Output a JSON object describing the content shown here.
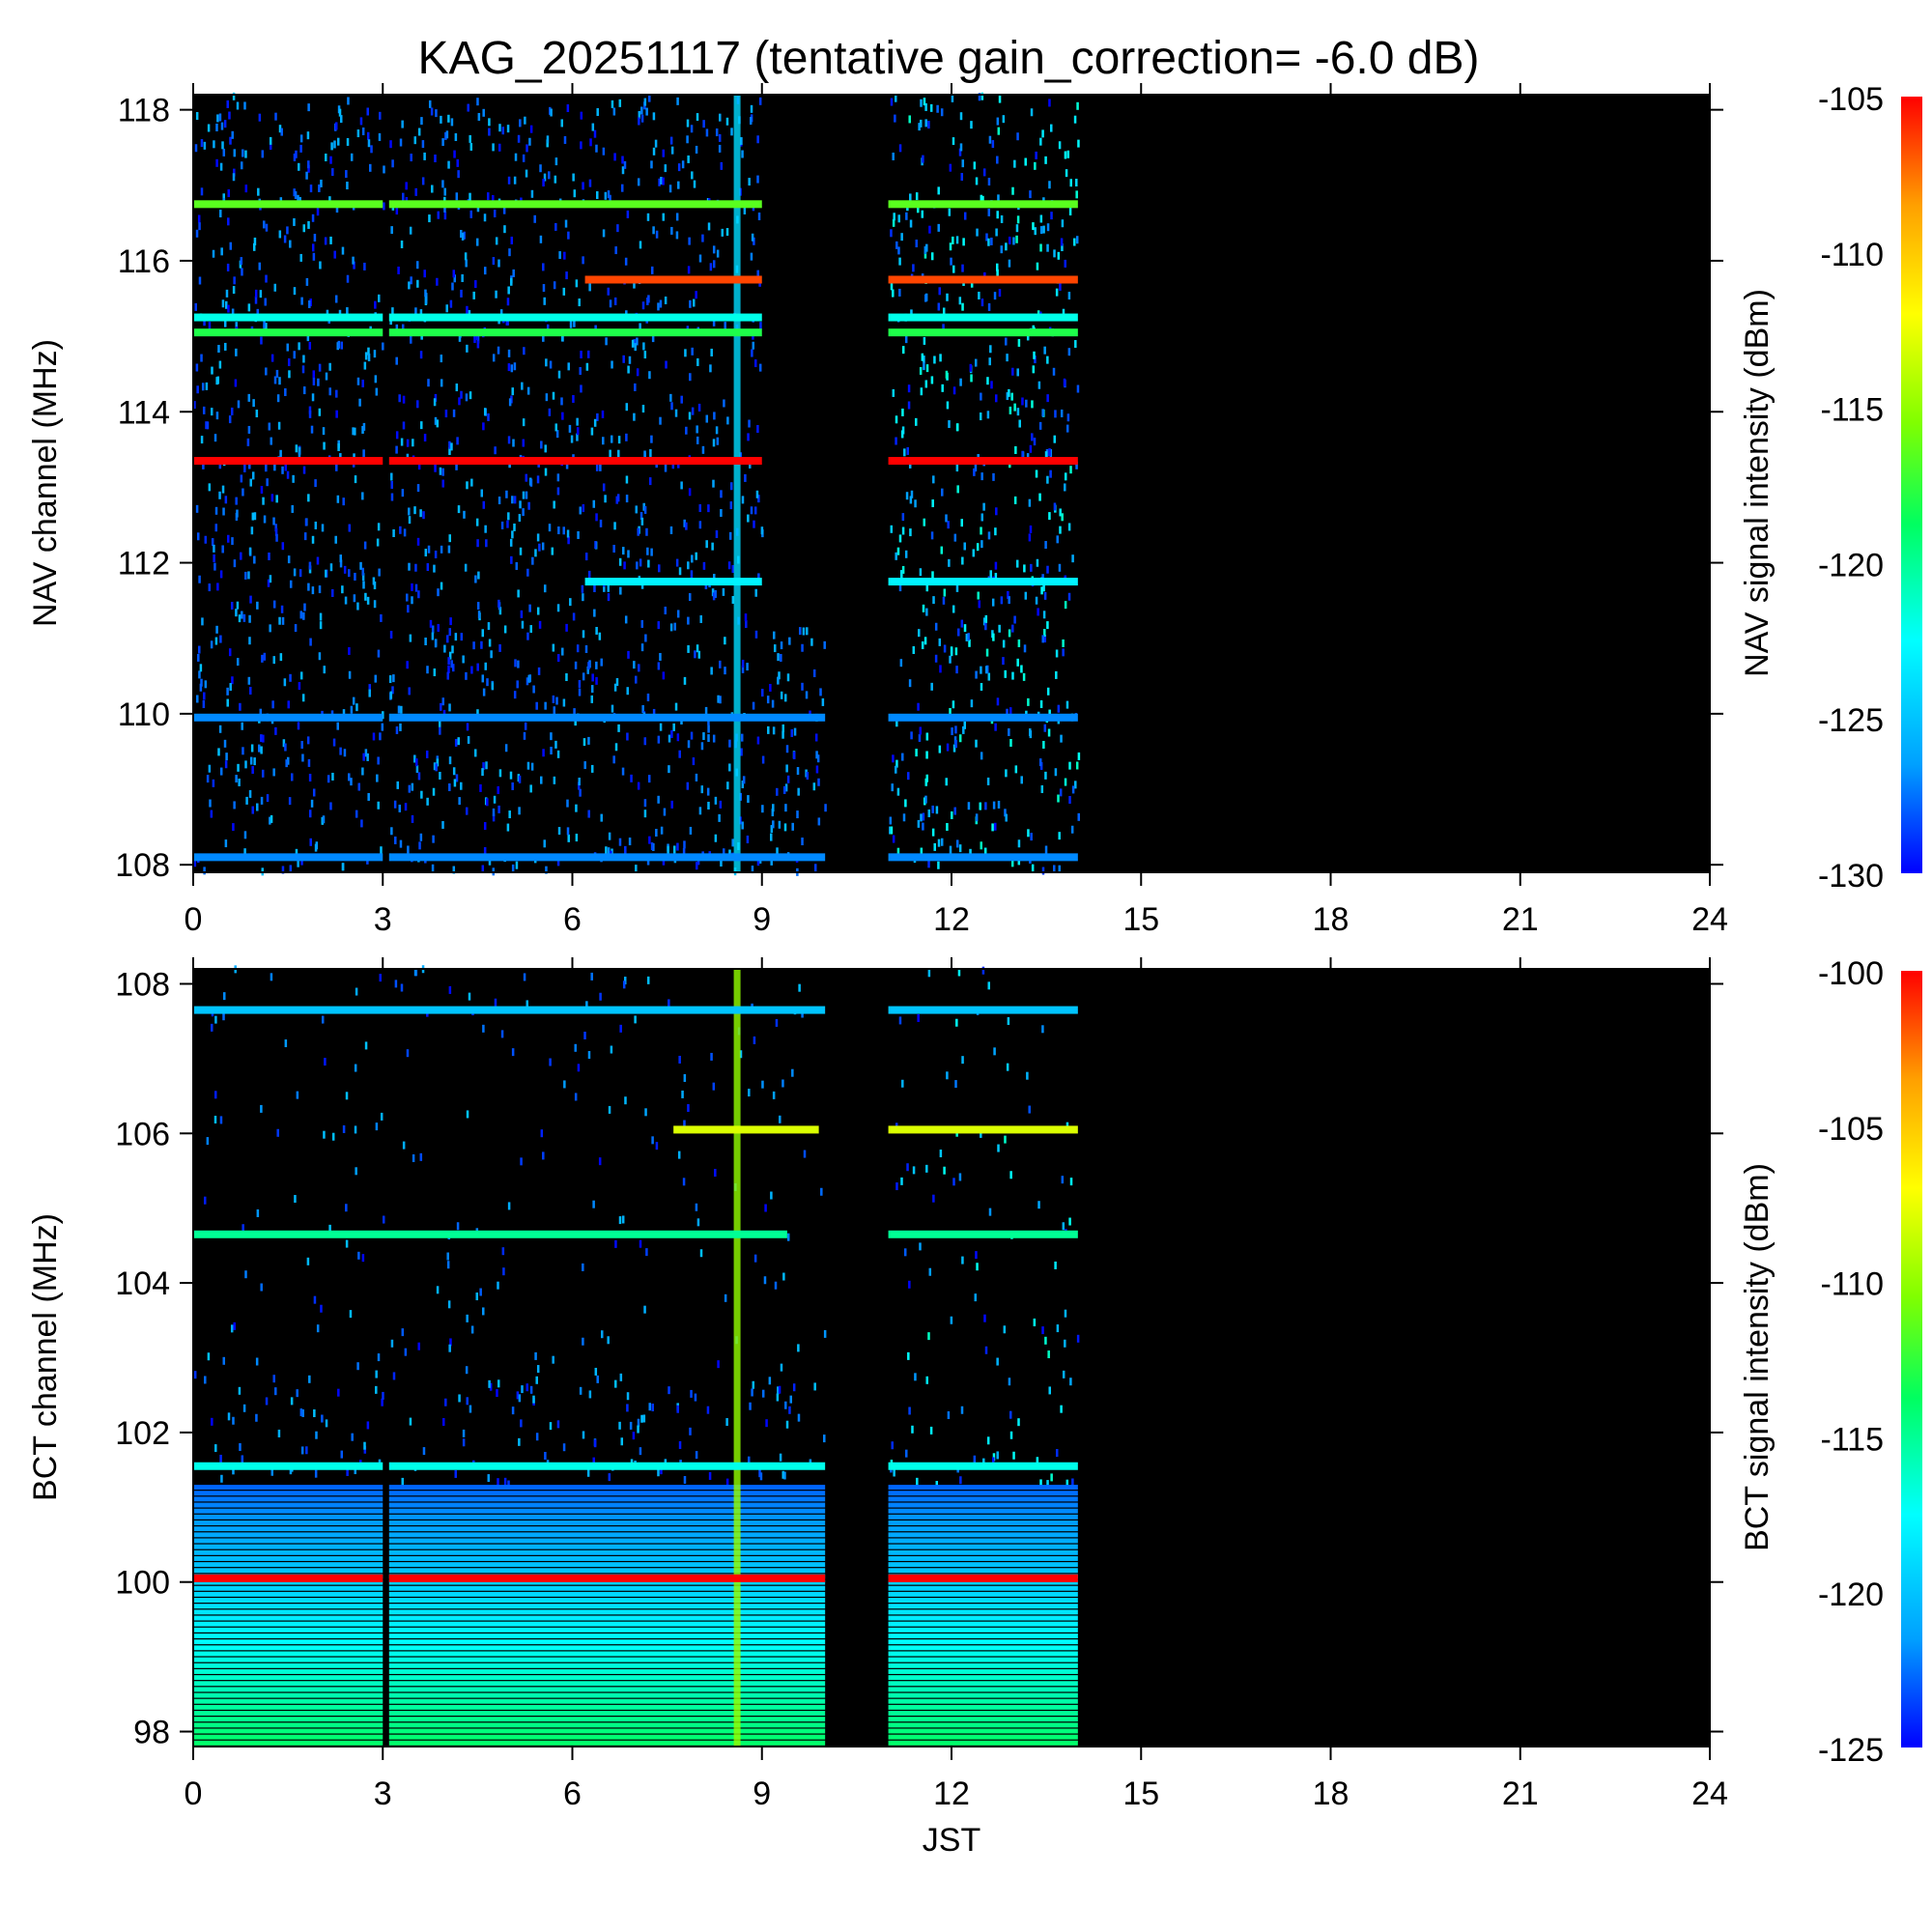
{
  "title": "KAG_20251117 (tentative gain_correction= -6.0 dB)",
  "colors": {
    "background": "#000000",
    "colormap": [
      "#0000ff",
      "#00a0ff",
      "#00ffff",
      "#00ff60",
      "#80ff00",
      "#ffff00",
      "#ffa000",
      "#ff0000"
    ],
    "ticks_and_frame": "#000000"
  },
  "chart_data": [
    {
      "type": "heatmap",
      "xlabel": "",
      "ylabel": "NAV channel (MHz)",
      "colorbar_label": "NAV signal intensity (dBm)",
      "xlim": [
        0,
        24
      ],
      "ylim": [
        107.9,
        118.2
      ],
      "xticks": [
        "0",
        "3",
        "6",
        "9",
        "12",
        "15",
        "18",
        "21",
        "24"
      ],
      "yticks": [
        "108",
        "110",
        "112",
        "114",
        "116",
        "118"
      ],
      "clim": [
        -130,
        -105
      ],
      "colorbar_ticks": [
        "-105",
        "-110",
        "-115",
        "-120",
        "-125",
        "-130"
      ],
      "data_coverage": [
        {
          "x": [
            0,
            9
          ],
          "y": [
            107.9,
            118.2
          ]
        },
        {
          "x": [
            9,
            10
          ],
          "y": [
            107.9,
            111.1
          ]
        },
        {
          "x": [
            11,
            14
          ],
          "y": [
            107.9,
            118.2
          ]
        }
      ],
      "data_gap": [
        3.0,
        3.1
      ],
      "strong_lines": [
        {
          "freq": 116.75,
          "dbm": -116.5,
          "segments": [
            [
              0,
              3
            ],
            [
              3.1,
              9
            ],
            [
              11,
              14
            ]
          ]
        },
        {
          "freq": 115.75,
          "dbm": -106.5,
          "segments": [
            [
              6.2,
              9
            ],
            [
              11,
              14
            ]
          ]
        },
        {
          "freq": 115.25,
          "dbm": -122,
          "segments": [
            [
              0,
              3
            ],
            [
              3.1,
              9
            ],
            [
              11,
              14
            ]
          ]
        },
        {
          "freq": 115.05,
          "dbm": -118,
          "segments": [
            [
              0,
              3
            ],
            [
              3.1,
              9
            ],
            [
              11,
              14
            ]
          ]
        },
        {
          "freq": 113.35,
          "dbm": -105,
          "segments": [
            [
              0,
              3
            ],
            [
              3.1,
              9
            ],
            [
              11,
              14
            ]
          ]
        },
        {
          "freq": 111.75,
          "dbm": -123,
          "segments": [
            [
              6.2,
              9
            ],
            [
              11,
              14
            ]
          ]
        },
        {
          "freq": 109.95,
          "dbm": -127,
          "segments": [
            [
              0,
              3
            ],
            [
              3.1,
              10
            ],
            [
              11,
              14
            ]
          ]
        },
        {
          "freq": 108.1,
          "dbm": -127,
          "segments": [
            [
              0,
              3
            ],
            [
              3.1,
              10
            ],
            [
              11,
              14
            ]
          ]
        }
      ],
      "broadband_event": {
        "x": 8.6,
        "dbm": -124
      }
    },
    {
      "type": "heatmap",
      "xlabel": "JST",
      "ylabel": "BCT channel (MHz)",
      "colorbar_label": "BCT signal intensity (dBm)",
      "xlim": [
        0,
        24
      ],
      "ylim": [
        97.8,
        108.2
      ],
      "xticks": [
        "0",
        "3",
        "6",
        "9",
        "12",
        "15",
        "18",
        "21",
        "24"
      ],
      "yticks": [
        "98",
        "100",
        "102",
        "104",
        "106",
        "108"
      ],
      "clim": [
        -125,
        -100
      ],
      "colorbar_ticks": [
        "-100",
        "-105",
        "-110",
        "-115",
        "-120",
        "-125"
      ],
      "data_coverage": [
        {
          "x": [
            0,
            10
          ],
          "y": [
            97.8,
            108.2
          ]
        },
        {
          "x": [
            11,
            14
          ],
          "y": [
            97.8,
            108.2
          ]
        }
      ],
      "data_gap": [
        3.0,
        3.1
      ],
      "strong_lines": [
        {
          "freq": 101.55,
          "dbm": -117,
          "segments": [
            [
              0,
              3
            ],
            [
              3.1,
              10
            ],
            [
              11,
              14
            ]
          ]
        },
        {
          "freq": 100.05,
          "dbm": -100,
          "segments": [
            [
              0,
              3
            ],
            [
              3.1,
              10
            ],
            [
              11,
              14
            ]
          ]
        },
        {
          "freq": 106.05,
          "dbm": -108,
          "segments": [
            [
              7.6,
              9.9
            ],
            [
              11,
              14
            ]
          ]
        },
        {
          "freq": 104.65,
          "dbm": -115,
          "segments": [
            [
              0,
              9.4
            ],
            [
              11,
              14
            ]
          ]
        },
        {
          "freq": 107.65,
          "dbm": -120,
          "segments": [
            [
              0,
              10
            ],
            [
              11,
              14
            ]
          ]
        }
      ],
      "low_band_gradient": {
        "freq_range": [
          97.8,
          101.3
        ],
        "dbm_top": -123,
        "dbm_bottom": -114
      },
      "broadband_event": {
        "x": 8.6,
        "dbm": -110
      }
    }
  ]
}
